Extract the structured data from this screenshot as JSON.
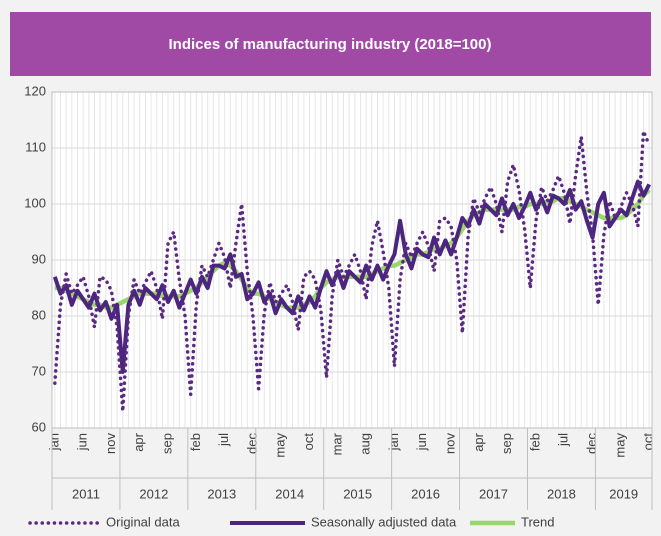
{
  "chart_data": {
    "type": "line",
    "title": "Indices of manufacturing industry (2018=100)",
    "categories": [
      "jan",
      null,
      null,
      null,
      null,
      "jun",
      null,
      null,
      null,
      null,
      "nov",
      null,
      null,
      null,
      null,
      "apr",
      null,
      null,
      null,
      null,
      "sep",
      null,
      null,
      null,
      null,
      "feb",
      null,
      null,
      null,
      null,
      "jul",
      null,
      null,
      null,
      null,
      "dec",
      null,
      null,
      null,
      null,
      "may",
      null,
      null,
      null,
      null,
      "oct",
      null,
      null,
      null,
      null,
      "mar",
      null,
      null,
      null,
      null,
      "aug",
      null,
      null,
      null,
      null,
      "jan",
      null,
      null,
      null,
      null,
      "jun",
      null,
      null,
      null,
      null,
      "nov",
      null,
      null,
      null,
      null,
      "apr",
      null,
      null,
      null,
      null,
      "sep",
      null,
      null,
      null,
      null,
      "feb",
      null,
      null,
      null,
      null,
      "jul",
      null,
      null,
      null,
      null,
      "dec",
      null,
      null,
      null,
      null,
      "may",
      null,
      null,
      null,
      null,
      "oct"
    ],
    "years": [
      "2011",
      "2012",
      "2013",
      "2014",
      "2015",
      "2016",
      "2017",
      "2018",
      "2019"
    ],
    "series": [
      {
        "name": "Original data",
        "color": "#5a2a82",
        "style": "dotted",
        "values": [
          68,
          82,
          87.5,
          84,
          85.5,
          87,
          83.5,
          78,
          87,
          86.5,
          84.5,
          78,
          63,
          80,
          86.5,
          84,
          86,
          88,
          85,
          79.5,
          93,
          95,
          86.5,
          80,
          66,
          82,
          89,
          87,
          90,
          93,
          90.5,
          85,
          93,
          100,
          88,
          80,
          67,
          80.5,
          86,
          82.5,
          84,
          85.5,
          82.5,
          77.5,
          87,
          88,
          86.5,
          81,
          69,
          83.5,
          90,
          87,
          89,
          91,
          88,
          83,
          92.5,
          97,
          91.5,
          85,
          71,
          86.5,
          93,
          90.5,
          93,
          95,
          92.5,
          88,
          97,
          97.5,
          96,
          90,
          77,
          94,
          101,
          98.5,
          101,
          103,
          100,
          95,
          104,
          107,
          102.5,
          95.5,
          85,
          97,
          103,
          100.5,
          102.5,
          105,
          102,
          96.5,
          105,
          112,
          102,
          94.5,
          82,
          94.5,
          100.5,
          97.5,
          99.5,
          102,
          100,
          96,
          113,
          110.5
        ]
      },
      {
        "name": "Seasonally adjusted data",
        "color": "#4b2580",
        "style": "solid",
        "values": [
          87,
          84,
          85.5,
          82,
          84.5,
          83,
          81.5,
          84,
          81,
          82.5,
          79.5,
          82,
          70,
          82,
          84.5,
          82,
          85,
          84,
          83,
          85.5,
          82.5,
          84.5,
          81.5,
          84,
          86.5,
          84,
          87,
          85,
          89,
          89,
          88.5,
          91,
          87,
          87.5,
          83,
          84,
          86,
          82.5,
          84,
          80.5,
          83,
          81.5,
          80.5,
          83.5,
          81,
          83.5,
          81.5,
          85,
          88,
          85.5,
          88,
          85,
          88,
          87,
          86,
          89,
          86.5,
          89,
          86.5,
          89,
          91,
          97,
          91,
          88.5,
          92,
          91,
          90.5,
          94,
          91,
          93.5,
          91,
          94,
          97.5,
          96,
          99,
          96.5,
          100,
          99,
          98,
          101,
          98,
          100,
          97.5,
          99.5,
          102,
          99,
          101,
          98.5,
          101.5,
          101,
          100,
          102.5,
          99,
          100.5,
          97,
          94,
          100,
          102,
          96,
          97.5,
          99,
          98,
          101,
          104,
          101.5,
          103.5
        ]
      },
      {
        "name": "Trend",
        "color": "#99d66b",
        "style": "solid",
        "values": [
          85,
          85,
          84.5,
          84,
          83.5,
          83,
          82.5,
          82,
          82,
          81.5,
          81.5,
          82,
          82.5,
          83,
          83.5,
          84,
          84,
          84,
          84,
          83.5,
          83.5,
          83.5,
          83.5,
          84,
          84.5,
          85,
          86,
          87,
          88,
          89,
          89.5,
          89,
          88,
          86.5,
          85,
          84,
          84,
          83.5,
          83,
          82.5,
          82,
          81.5,
          81.5,
          81.5,
          82,
          82.5,
          83.5,
          85,
          86,
          86.5,
          87,
          87,
          87,
          87,
          87,
          87,
          87.5,
          88,
          88.5,
          89,
          89,
          89.5,
          90,
          90.5,
          91,
          91,
          91.5,
          92,
          92,
          92.5,
          93,
          94,
          95.5,
          97,
          98,
          98.5,
          99,
          99,
          99,
          99,
          99,
          99,
          99.5,
          99.5,
          100,
          100,
          100,
          100.5,
          100.5,
          101,
          101,
          100.5,
          100,
          99.5,
          99,
          98.5,
          98,
          97.5,
          97.5,
          97.5,
          97.5,
          98,
          99,
          100,
          101.5,
          102.5
        ]
      }
    ],
    "ylim": [
      60,
      120
    ],
    "yticks": [
      60,
      70,
      80,
      90,
      100,
      110,
      120
    ],
    "grid": true,
    "legend": "bottom"
  }
}
